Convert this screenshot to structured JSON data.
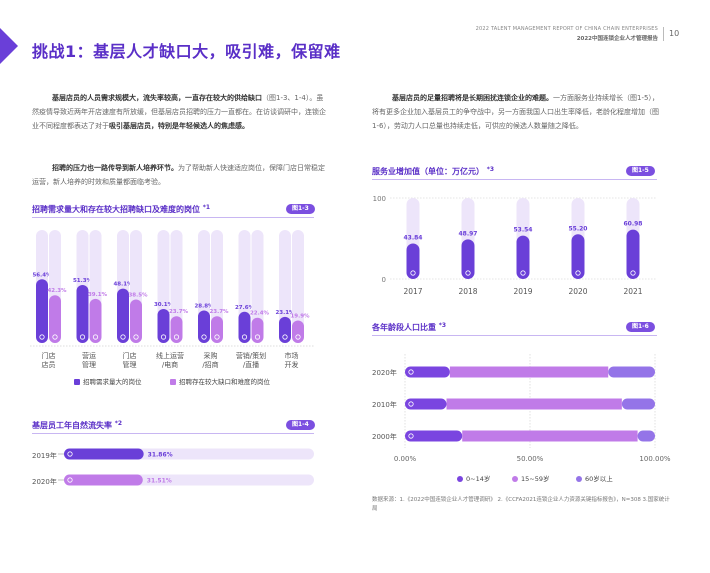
{
  "header": {
    "report_en": "2022 TALENT MANAGEMENT REPORT OF CHINA CHAIN ENTERPRISES",
    "report_cn": "2022中国连锁企业人才管理报告",
    "page_number": "10"
  },
  "page_title": "挑战1：基层人才缺口大，吸引难，保留难",
  "left": {
    "para1_bold": "基层店员的人员需求规模大，流失率较高，一直存在较大的供给缺口",
    "para1_rest": "（图1-3、1-4）。虽然疫情导致近两年开店速度有所放缓，但基层店员招聘的压力一直都在。在访谈调研中，连锁企业不同程度都表达了对于",
    "para1_bold2": "吸引基层店员，特别是年轻候选人的焦虑感。",
    "para2_bold": "招聘的压力也一路传导到新人培养环节。",
    "para2_rest": "为了帮助新人快速适应岗位，保障门店日常稳定运营，新人培养的时效和质量都面临考验。"
  },
  "right": {
    "para_bold": "基层店员的足量招聘将是长期困扰连锁企业的难题。",
    "para_rest": "一方面服务业持续增长（图1-5），将有更多企业加入基层员工的争夺战中，另一方面我国人口出生率降低，老龄化程度增加（图1-6），劳动力人口总量也持续走低，可供应的候选人数量随之降低。"
  },
  "fig13": {
    "title": "招聘需求量大和存在较大招聘缺口及难度的岗位",
    "note": "*1",
    "badge": "图1-3",
    "legend": [
      "招聘需求量大的岗位",
      "招聘存在较大缺口和难度的岗位"
    ],
    "colors": [
      "#6a3fd8",
      "#c07be8"
    ]
  },
  "fig14": {
    "title": "基层员工年自然流失率",
    "note": "*2",
    "badge": "图1-4",
    "colors": [
      "#6a3fd8",
      "#c07be8"
    ]
  },
  "fig15": {
    "title": "服务业增加值（单位：万亿元）",
    "note": "*3",
    "badge": "图1-5",
    "color": "#6a3fd8"
  },
  "fig16": {
    "title": "各年龄段人口比重",
    "note": "*3",
    "badge": "图1-6",
    "colors": [
      "#7a45e0",
      "#c07be8",
      "#9474e8"
    ]
  },
  "source_note": "数据来源：1.《2022中国连锁企业人才管理调研》 2.《CCFA2021连锁企业人力资源关键指标报告》，N=308 3.国家统计局",
  "chart_data": [
    {
      "type": "bar",
      "categories": [
        "门店\n店员",
        "营运\n管理",
        "门店\n管理",
        "线上运营\n/电商",
        "采购\n/招商",
        "营销/策划\n/直播",
        "市场\n开发"
      ],
      "series": [
        {
          "name": "招聘需求量大的岗位",
          "values": [
            56.4,
            51.3,
            48.1,
            30.1,
            28.8,
            27.6,
            23.1
          ]
        },
        {
          "name": "招聘存在较大缺口和难度的岗位",
          "values": [
            42.3,
            39.1,
            38.5,
            23.7,
            23.7,
            22.4,
            19.9
          ]
        }
      ],
      "value_labels": [
        [
          "56.4%",
          "51.3%",
          "48.1%",
          "30.1%",
          "28.8%",
          "27.6%",
          "23.1%"
        ],
        [
          "42.3%",
          "39.1%",
          "38.5%",
          "23.7%",
          "23.7%",
          "22.4%",
          "19.9%"
        ]
      ],
      "ylim": [
        0,
        100
      ],
      "legend": "bottom"
    },
    {
      "type": "bar",
      "orientation": "horizontal",
      "categories": [
        "2019年",
        "2020年"
      ],
      "values": [
        31.86,
        31.51
      ],
      "value_labels": [
        "31.86%",
        "31.51%"
      ],
      "xlim": [
        0,
        100
      ]
    },
    {
      "type": "bar",
      "categories": [
        "2017",
        "2018",
        "2019",
        "2020",
        "2021"
      ],
      "values": [
        43.84,
        48.97,
        53.54,
        55.2,
        60.98
      ],
      "value_labels": [
        "43.84",
        "48.97",
        "53.54",
        "55.20",
        "60.98"
      ],
      "yticks": [
        "0",
        "100"
      ],
      "ylim": [
        0,
        100
      ]
    },
    {
      "type": "bar",
      "orientation": "horizontal",
      "stacked": true,
      "categories": [
        "2020年",
        "2010年",
        "2000年"
      ],
      "series": [
        {
          "name": "0~14岁",
          "values": [
            17.95,
            16.6,
            22.89
          ]
        },
        {
          "name": "15~59岁",
          "values": [
            63.35,
            70.14,
            70.15
          ]
        },
        {
          "name": "60岁以上",
          "values": [
            18.7,
            13.26,
            6.96
          ]
        }
      ],
      "xticks": [
        "0.00%",
        "50.00%",
        "100.00%"
      ],
      "xlim": [
        0,
        100
      ],
      "legend": "bottom"
    }
  ]
}
